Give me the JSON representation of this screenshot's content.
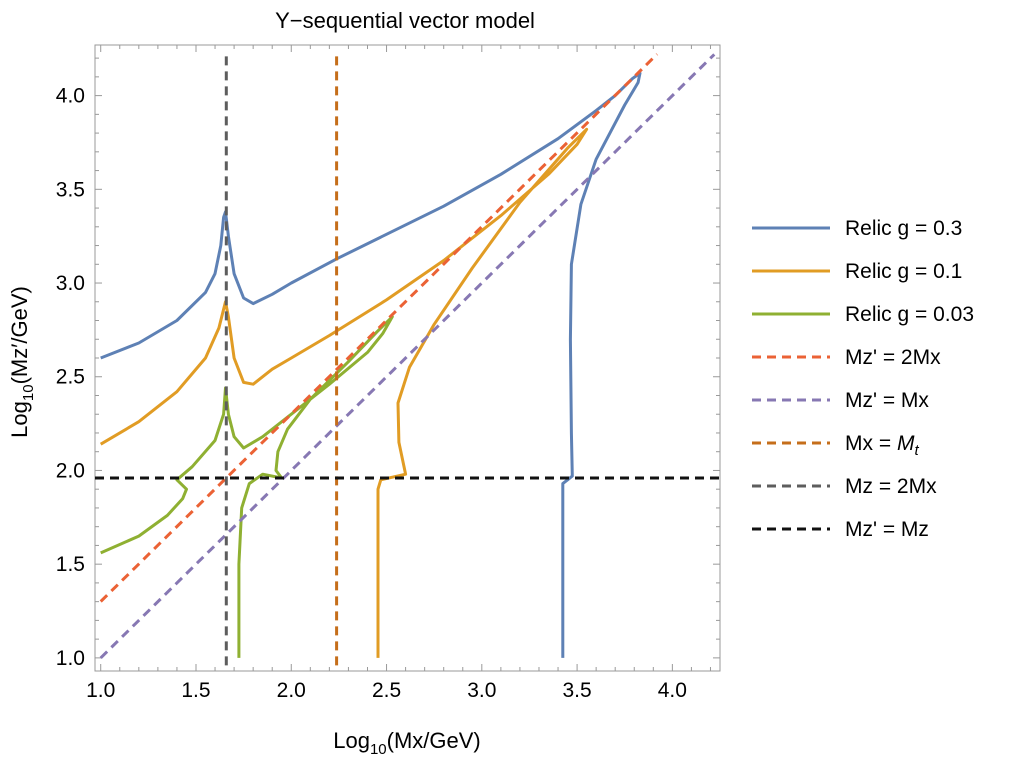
{
  "chart_data": {
    "type": "line",
    "title": "Y−sequential vector model",
    "xlabel_pre": "Log",
    "xlabel_sub": "10",
    "xlabel_post": "(Mx/GeV)",
    "ylabel_pre": "Log",
    "ylabel_sub": "10",
    "ylabel_post": "(Mz′/GeV)",
    "xlim": [
      0.97,
      4.25
    ],
    "ylim": [
      0.93,
      4.27
    ],
    "xticks": [
      1.0,
      1.5,
      2.0,
      2.5,
      3.0,
      3.5,
      4.0
    ],
    "xtick_labels": [
      "1.0",
      "1.5",
      "2.0",
      "2.5",
      "3.0",
      "3.5",
      "4.0"
    ],
    "yticks": [
      1.0,
      1.5,
      2.0,
      2.5,
      3.0,
      3.5,
      4.0
    ],
    "ytick_labels": [
      "1.0",
      "1.5",
      "2.0",
      "2.5",
      "3.0",
      "3.5",
      "4.0"
    ],
    "legend_position": "right",
    "series": [
      {
        "name": "Relic g = 0.3",
        "color": "#5e81b5",
        "dashed": false,
        "points": [
          [
            1.0,
            2.6
          ],
          [
            1.2,
            2.68
          ],
          [
            1.4,
            2.8
          ],
          [
            1.55,
            2.95
          ],
          [
            1.6,
            3.05
          ],
          [
            1.63,
            3.2
          ],
          [
            1.645,
            3.35
          ],
          [
            1.655,
            3.38
          ],
          [
            1.67,
            3.25
          ],
          [
            1.7,
            3.05
          ],
          [
            1.75,
            2.92
          ],
          [
            1.8,
            2.89
          ],
          [
            1.9,
            2.94
          ],
          [
            2.0,
            3.0
          ],
          [
            2.24,
            3.13
          ],
          [
            2.5,
            3.26
          ],
          [
            2.8,
            3.41
          ],
          [
            3.1,
            3.58
          ],
          [
            3.4,
            3.77
          ],
          [
            3.6,
            3.92
          ],
          [
            3.7,
            4.0
          ],
          [
            3.79,
            4.09
          ],
          [
            3.83,
            4.12
          ],
          [
            3.82,
            4.07
          ],
          [
            3.75,
            3.95
          ],
          [
            3.6,
            3.66
          ],
          [
            3.52,
            3.42
          ],
          [
            3.47,
            3.1
          ],
          [
            3.465,
            2.7
          ],
          [
            3.47,
            2.2
          ],
          [
            3.475,
            1.97
          ],
          [
            3.45,
            1.95
          ],
          [
            3.425,
            1.93
          ],
          [
            3.425,
            1.5
          ],
          [
            3.425,
            1.0
          ]
        ]
      },
      {
        "name": "Relic g = 0.1",
        "color": "#e19c24",
        "dashed": false,
        "points": [
          [
            1.0,
            2.14
          ],
          [
            1.2,
            2.26
          ],
          [
            1.4,
            2.42
          ],
          [
            1.55,
            2.6
          ],
          [
            1.62,
            2.76
          ],
          [
            1.655,
            2.9
          ],
          [
            1.67,
            2.82
          ],
          [
            1.7,
            2.6
          ],
          [
            1.75,
            2.47
          ],
          [
            1.8,
            2.46
          ],
          [
            1.9,
            2.54
          ],
          [
            2.0,
            2.6
          ],
          [
            2.2,
            2.72
          ],
          [
            2.5,
            2.91
          ],
          [
            2.8,
            3.12
          ],
          [
            3.1,
            3.36
          ],
          [
            3.35,
            3.58
          ],
          [
            3.5,
            3.74
          ],
          [
            3.55,
            3.82
          ],
          [
            3.45,
            3.72
          ],
          [
            3.2,
            3.43
          ],
          [
            2.95,
            3.08
          ],
          [
            2.75,
            2.78
          ],
          [
            2.62,
            2.55
          ],
          [
            2.56,
            2.36
          ],
          [
            2.565,
            2.15
          ],
          [
            2.6,
            1.98
          ],
          [
            2.47,
            1.95
          ],
          [
            2.455,
            1.9
          ],
          [
            2.455,
            1.5
          ],
          [
            2.455,
            1.0
          ]
        ]
      },
      {
        "name": "Relic g = 0.03",
        "color": "#8fb032",
        "dashed": false,
        "points": [
          [
            1.0,
            1.56
          ],
          [
            1.2,
            1.65
          ],
          [
            1.35,
            1.76
          ],
          [
            1.43,
            1.85
          ],
          [
            1.45,
            1.9
          ],
          [
            1.4,
            1.95
          ],
          [
            1.48,
            2.02
          ],
          [
            1.6,
            2.16
          ],
          [
            1.645,
            2.3
          ],
          [
            1.655,
            2.44
          ],
          [
            1.67,
            2.3
          ],
          [
            1.7,
            2.18
          ],
          [
            1.75,
            2.12
          ],
          [
            1.85,
            2.18
          ],
          [
            2.0,
            2.3
          ],
          [
            2.2,
            2.46
          ],
          [
            2.4,
            2.63
          ],
          [
            2.48,
            2.73
          ],
          [
            2.53,
            2.82
          ],
          [
            2.45,
            2.74
          ],
          [
            2.3,
            2.58
          ],
          [
            2.1,
            2.38
          ],
          [
            1.98,
            2.22
          ],
          [
            1.93,
            2.1
          ],
          [
            1.92,
            2.0
          ],
          [
            1.95,
            1.96
          ],
          [
            1.85,
            1.98
          ],
          [
            1.78,
            1.93
          ],
          [
            1.74,
            1.8
          ],
          [
            1.725,
            1.5
          ],
          [
            1.725,
            1.0
          ]
        ]
      },
      {
        "name": "Mz' = 2Mx",
        "color": "#eb6235",
        "dashed": true,
        "points": [
          [
            1.0,
            1.301
          ],
          [
            3.92,
            4.221
          ]
        ]
      },
      {
        "name": "Mz' = Mx",
        "color": "#8778b3",
        "dashed": true,
        "points": [
          [
            1.0,
            1.0
          ],
          [
            4.22,
            4.22
          ]
        ]
      },
      {
        "name": "Mx = M_t",
        "color": "#c56e1a",
        "dashed": true,
        "points": [
          [
            2.238,
            0.96
          ],
          [
            2.238,
            4.21
          ]
        ]
      },
      {
        "name": "Mz = 2Mx",
        "color": "#5d5d5d",
        "dashed": true,
        "points": [
          [
            1.659,
            0.96
          ],
          [
            1.659,
            4.21
          ]
        ]
      },
      {
        "name": "Mz' = Mz",
        "color": "#111111",
        "dashed": true,
        "points": [
          [
            0.97,
            1.96
          ],
          [
            4.25,
            1.96
          ]
        ]
      }
    ],
    "legend": [
      {
        "pre": "Relic g = 0.3",
        "italic": "",
        "sub": ""
      },
      {
        "pre": "Relic g = 0.1",
        "italic": "",
        "sub": ""
      },
      {
        "pre": "Relic g = 0.03",
        "italic": "",
        "sub": ""
      },
      {
        "pre": "Mz' = 2Mx",
        "italic": "",
        "sub": ""
      },
      {
        "pre": "Mz' = Mx",
        "italic": "",
        "sub": ""
      },
      {
        "pre": "Mx = ",
        "italic": "M",
        "sub": "t"
      },
      {
        "pre": "Mz = 2Mx",
        "italic": "",
        "sub": ""
      },
      {
        "pre": "Mz' = Mz",
        "italic": "",
        "sub": ""
      }
    ]
  }
}
